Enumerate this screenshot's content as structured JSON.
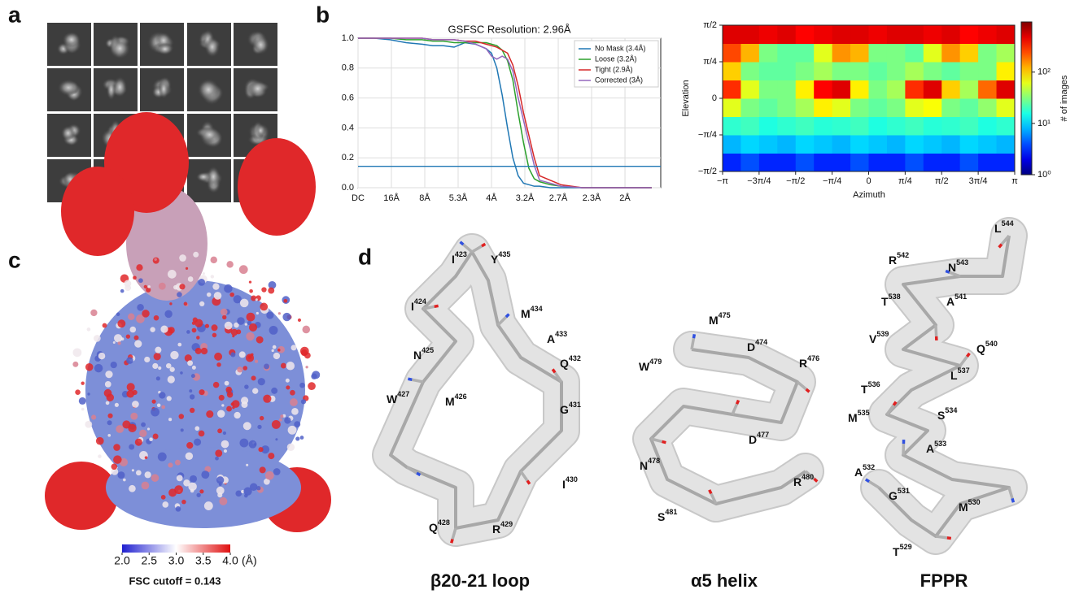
{
  "panel_labels": [
    "a",
    "b",
    "c",
    "d"
  ],
  "chart_data": [
    {
      "type": "line",
      "title": "GSFSC Resolution: 2.96Å",
      "x": [
        0,
        0.03,
        0.06,
        0.09,
        0.12,
        0.14,
        0.16,
        0.18,
        0.2,
        0.22,
        0.24,
        0.25,
        0.26,
        0.27,
        0.28,
        0.29,
        0.3,
        0.31,
        0.32,
        0.33,
        0.34,
        0.36,
        0.38,
        0.42,
        0.46,
        0.5,
        0.55
      ],
      "series": [
        {
          "name": "No Mask (3.4Å)",
          "color": "#1f77b4",
          "values": [
            1,
            1,
            0.99,
            0.97,
            0.96,
            0.95,
            0.95,
            0.94,
            0.97,
            0.96,
            0.93,
            0.9,
            0.8,
            0.62,
            0.4,
            0.2,
            0.08,
            0.03,
            0.02,
            0.01,
            0.01,
            0,
            0,
            0,
            0,
            0,
            0
          ]
        },
        {
          "name": "Loose (3.2Å)",
          "color": "#2ca02c",
          "values": [
            1,
            1,
            1,
            0.99,
            0.99,
            0.98,
            0.98,
            0.97,
            0.97,
            0.97,
            0.97,
            0.96,
            0.95,
            0.92,
            0.85,
            0.72,
            0.5,
            0.3,
            0.13,
            0.06,
            0.04,
            0.02,
            0.01,
            0,
            0,
            0,
            0
          ]
        },
        {
          "name": "Tight (2.9Å)",
          "color": "#d62728",
          "values": [
            1,
            1,
            1,
            1,
            1,
            0.99,
            0.99,
            0.99,
            0.98,
            0.98,
            0.96,
            0.95,
            0.94,
            0.92,
            0.9,
            0.82,
            0.68,
            0.5,
            0.35,
            0.2,
            0.08,
            0.05,
            0.02,
            0,
            0,
            0,
            0
          ]
        },
        {
          "name": "Corrected (3Å)",
          "color": "#9467bd",
          "values": [
            1,
            1,
            1,
            1,
            1,
            0.99,
            0.99,
            0.99,
            0.98,
            0.96,
            0.93,
            0.88,
            0.86,
            0.88,
            0.86,
            0.78,
            0.6,
            0.45,
            0.3,
            0.15,
            0.05,
            0.03,
            0.01,
            0,
            0,
            0,
            0
          ]
        }
      ],
      "xlim": [
        0,
        0.567
      ],
      "xticks": [
        {
          "value": 0,
          "label": "DC"
        },
        {
          "value": 0.0625,
          "label": "16Å"
        },
        {
          "value": 0.125,
          "label": "8Å"
        },
        {
          "value": 0.1875,
          "label": "5.3Å"
        },
        {
          "value": 0.25,
          "label": "4Å"
        },
        {
          "value": 0.3125,
          "label": "3.2Å"
        },
        {
          "value": 0.375,
          "label": "2.7Å"
        },
        {
          "value": 0.4375,
          "label": "2.3Å"
        },
        {
          "value": 0.5,
          "label": "2Å"
        }
      ],
      "ylim": [
        0,
        1
      ],
      "yticks": [
        {
          "value": 0,
          "label": "0.0"
        },
        0.2,
        0.4,
        0.6,
        0.8,
        {
          "value": 1,
          "label": "1.0"
        }
      ],
      "threshold": 0.143,
      "threshold_color": "#1f77b4",
      "grid": true,
      "legend": "upper right"
    },
    {
      "type": "heatmap",
      "xlabel": "Azimuth",
      "ylabel": "Elevation",
      "xlim": [
        -3.1416,
        3.1416
      ],
      "ylim": [
        -1.5708,
        1.5708
      ],
      "xticks": [
        {
          "value": -3.1416,
          "label": "−π"
        },
        {
          "value": -2.3562,
          "label": "−3π/4"
        },
        {
          "value": -1.5708,
          "label": "−π/2"
        },
        {
          "value": -0.7854,
          "label": "−π/4"
        },
        0,
        {
          "value": 0.7854,
          "label": "π/4"
        },
        {
          "value": 1.5708,
          "label": "π/2"
        },
        {
          "value": 2.3562,
          "label": "3π/4"
        },
        {
          "value": 3.1416,
          "label": "π"
        }
      ],
      "yticks": [
        {
          "value": -1.5708,
          "label": "−π/2"
        },
        {
          "value": -0.7854,
          "label": "−π/4"
        },
        0,
        {
          "value": 0.7854,
          "label": "π/4"
        },
        {
          "value": 1.5708,
          "label": "π/2"
        }
      ],
      "values": [
        [
          3,
          4,
          3,
          3,
          4,
          3,
          3,
          4,
          3,
          3,
          4,
          3,
          3,
          4,
          3,
          3
        ],
        [
          8,
          10,
          9,
          8,
          10,
          9,
          8,
          10,
          9,
          8,
          10,
          9,
          8,
          10,
          9,
          8
        ],
        [
          18,
          20,
          16,
          18,
          20,
          17,
          18,
          20,
          16,
          18,
          20,
          17,
          18,
          20,
          16,
          18
        ],
        [
          60,
          30,
          25,
          30,
          40,
          80,
          60,
          30,
          25,
          30,
          60,
          70,
          30,
          25,
          35,
          60
        ],
        [
          300,
          60,
          30,
          30,
          80,
          400,
          500,
          80,
          30,
          40,
          300,
          500,
          100,
          40,
          200,
          500
        ],
        [
          100,
          30,
          25,
          25,
          30,
          40,
          30,
          30,
          25,
          30,
          40,
          30,
          25,
          30,
          30,
          80
        ],
        [
          250,
          120,
          30,
          25,
          25,
          60,
          150,
          120,
          30,
          30,
          25,
          60,
          150,
          100,
          30,
          40
        ],
        [
          500,
          500,
          450,
          500,
          400,
          450,
          500,
          500,
          450,
          500,
          500,
          450,
          500,
          400,
          450,
          500
        ]
      ],
      "colorbar": {
        "label": "# of images",
        "lim": [
          1,
          950
        ],
        "log": true,
        "colormap": "jet",
        "ticks": [
          {
            "value": 1,
            "label": "10⁰"
          },
          {
            "value": 10,
            "label": "10¹"
          },
          {
            "value": 100,
            "label": "10²"
          }
        ]
      }
    }
  ],
  "map_colorbar": {
    "lim": [
      2,
      4
    ],
    "ticks": [
      {
        "value": 2,
        "label": "2.0"
      },
      2.5,
      {
        "value": 3,
        "label": "3.0"
      },
      3.5,
      {
        "value": 4,
        "label": "4.0"
      }
    ],
    "unit": "(Å)",
    "colors": [
      "#2020d0",
      "#ffffff",
      "#e01010"
    ],
    "note": "FSC cutoff = 0.143"
  },
  "structures": [
    {
      "caption": "β20-21 loop",
      "residues": [
        {
          "name": "I",
          "number": "423"
        },
        {
          "name": "Y",
          "number": "435"
        },
        {
          "name": "I",
          "number": "424"
        },
        {
          "name": "M",
          "number": "434"
        },
        {
          "name": "A",
          "number": "433"
        },
        {
          "name": "N",
          "number": "425"
        },
        {
          "name": "Q",
          "number": "432"
        },
        {
          "name": "W",
          "number": "427"
        },
        {
          "name": "M",
          "number": "426"
        },
        {
          "name": "G",
          "number": "431"
        },
        {
          "name": "I",
          "number": "430"
        },
        {
          "name": "Q",
          "number": "428"
        },
        {
          "name": "R",
          "number": "429"
        }
      ]
    },
    {
      "caption": "α5 helix",
      "residues": [
        {
          "name": "M",
          "number": "475"
        },
        {
          "name": "D",
          "number": "474"
        },
        {
          "name": "R",
          "number": "476"
        },
        {
          "name": "W",
          "number": "479"
        },
        {
          "name": "D",
          "number": "477"
        },
        {
          "name": "N",
          "number": "478"
        },
        {
          "name": "R",
          "number": "480"
        },
        {
          "name": "S",
          "number": "481"
        }
      ]
    },
    {
      "caption": "FPPR",
      "residues": [
        {
          "name": "L",
          "number": "544"
        },
        {
          "name": "R",
          "number": "542"
        },
        {
          "name": "N",
          "number": "543"
        },
        {
          "name": "T",
          "number": "538"
        },
        {
          "name": "A",
          "number": "541"
        },
        {
          "name": "V",
          "number": "539"
        },
        {
          "name": "Q",
          "number": "540"
        },
        {
          "name": "L",
          "number": "537"
        },
        {
          "name": "T",
          "number": "536"
        },
        {
          "name": "S",
          "number": "534"
        },
        {
          "name": "M",
          "number": "535"
        },
        {
          "name": "A",
          "number": "533"
        },
        {
          "name": "A",
          "number": "532"
        },
        {
          "name": "G",
          "number": "531"
        },
        {
          "name": "M",
          "number": "530"
        },
        {
          "name": "T",
          "number": "529"
        }
      ]
    }
  ]
}
